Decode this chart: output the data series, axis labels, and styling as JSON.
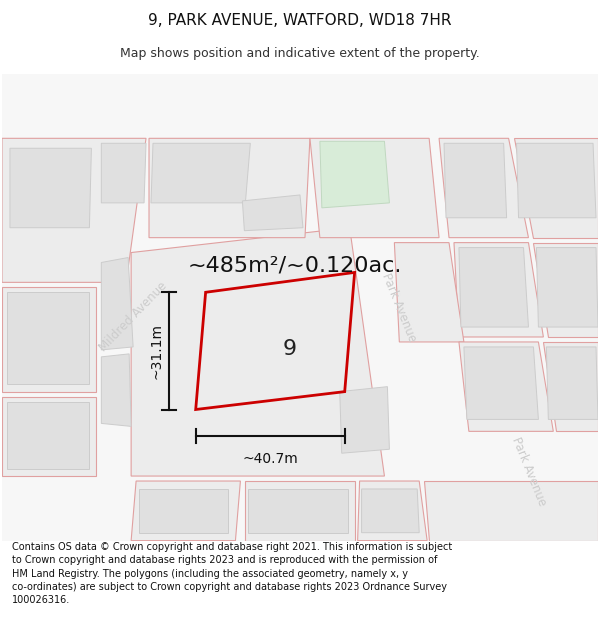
{
  "title": "9, PARK AVENUE, WATFORD, WD18 7HR",
  "subtitle": "Map shows position and indicative extent of the property.",
  "footer": "Contains OS data © Crown copyright and database right 2021. This information is subject to Crown copyright and database rights 2023 and is reproduced with the permission of HM Land Registry. The polygons (including the associated geometry, namely x, y co-ordinates) are subject to Crown copyright and database rights 2023 Ordnance Survey 100026316.",
  "area_label": "~485m²/~0.120ac.",
  "width_label": "~40.7m",
  "height_label": "~31.1m",
  "property_number": "9",
  "map_bg": "#f7f7f7",
  "road_fill": "#f7f7f7",
  "plot_fill": "#eeeeee",
  "building_fill": "#e0e0e0",
  "building_edge": "#cccccc",
  "plot_edge": "#e0a0a0",
  "green_fill": "#d8ecd8",
  "green_edge": "#c0d8c0",
  "property_color": "#cc0000",
  "property_lw": 2.0,
  "street_color": "#cccccc",
  "dim_color": "#111111",
  "title_fs": 11,
  "subtitle_fs": 9,
  "footer_fs": 7,
  "area_fs": 16,
  "dim_fs": 10,
  "num_fs": 16,
  "street_fs": 8.5
}
